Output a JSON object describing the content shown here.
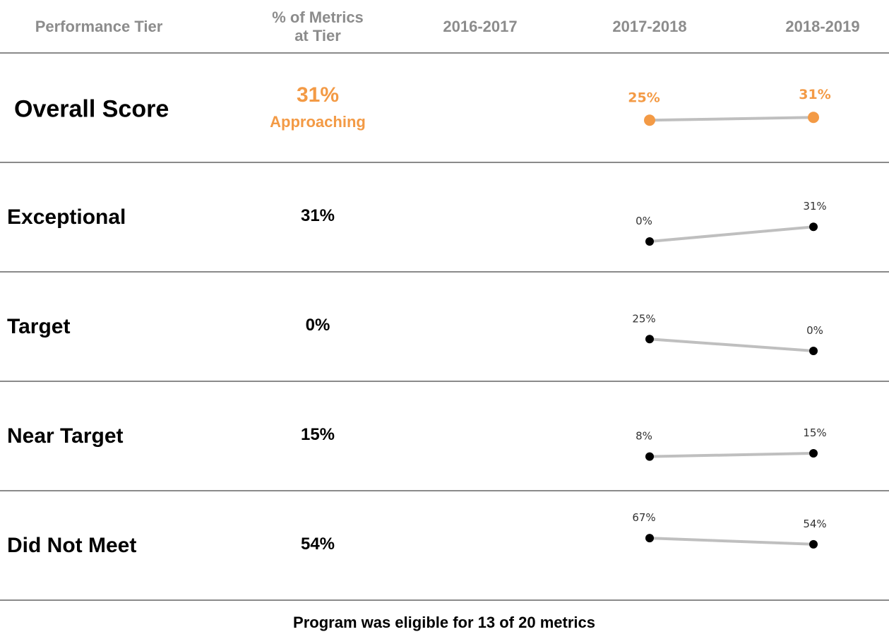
{
  "header": [
    "Performance Tier",
    "% of Metrics at Tier",
    "2016-2017",
    "2017-2018",
    "2018-2019"
  ],
  "rows": [
    {
      "label": "Overall Score",
      "value": "31%",
      "status": "Approaching",
      "trend": {
        "values": [
          25,
          31
        ],
        "value_labels": [
          "25%",
          "31%"
        ]
      }
    },
    {
      "label": "Exceptional",
      "value": "31%",
      "trend": {
        "values": [
          0,
          31
        ],
        "value_labels": [
          "0%",
          "31%"
        ]
      }
    },
    {
      "label": "Target",
      "value": "0%",
      "trend": {
        "values": [
          25,
          0
        ],
        "value_labels": [
          "25%",
          "0%"
        ]
      }
    },
    {
      "label": "Near Target",
      "value": "15%",
      "trend": {
        "values": [
          8,
          15
        ],
        "value_labels": [
          "8%",
          "15%"
        ]
      }
    },
    {
      "label": "Did Not Meet",
      "value": "54%",
      "trend": {
        "values": [
          67,
          54
        ],
        "value_labels": [
          "67%",
          "54%"
        ]
      }
    }
  ],
  "footer": "Program was eligible for 13 of 20 metrics"
}
